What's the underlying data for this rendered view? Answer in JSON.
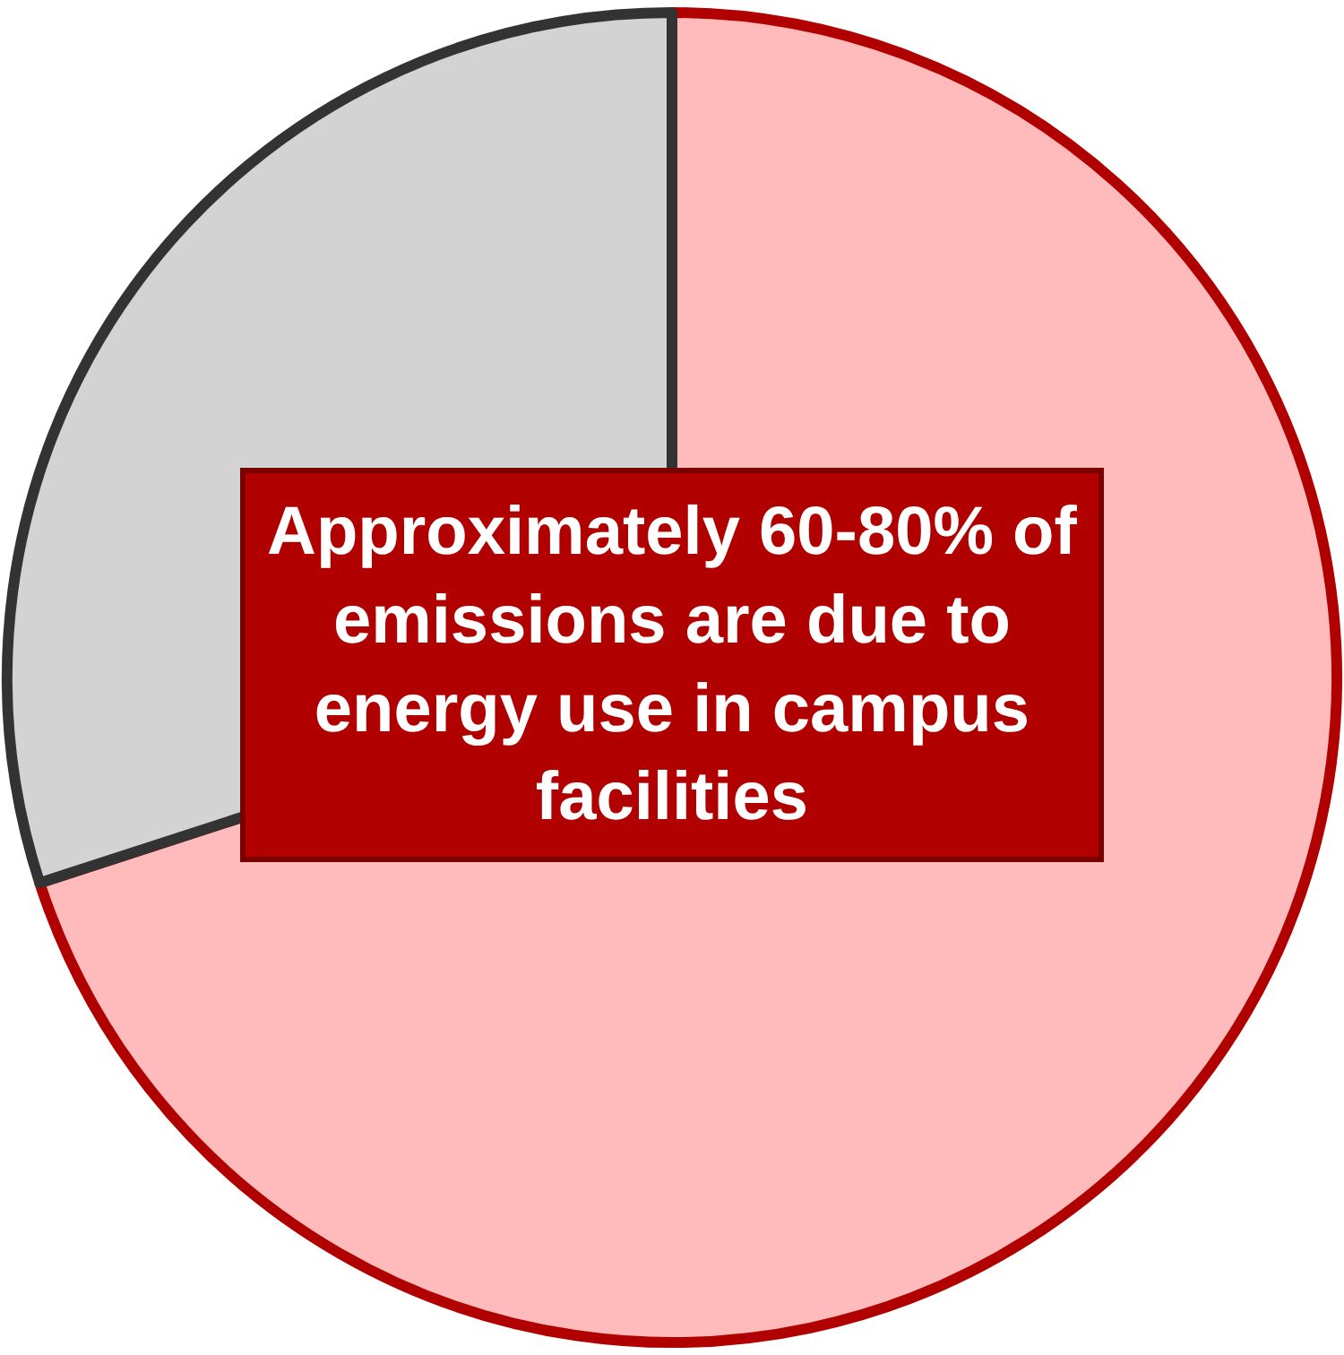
{
  "chart_data": {
    "type": "pie",
    "categories": [
      null,
      null
    ],
    "values": [
      70,
      30
    ],
    "colors": [
      "#ffbbbb",
      "#d3d3d3"
    ],
    "legend": false,
    "annotations": [
      "Approximately 60-80% of emissions are due to energy use in campus facilities"
    ]
  }
}
